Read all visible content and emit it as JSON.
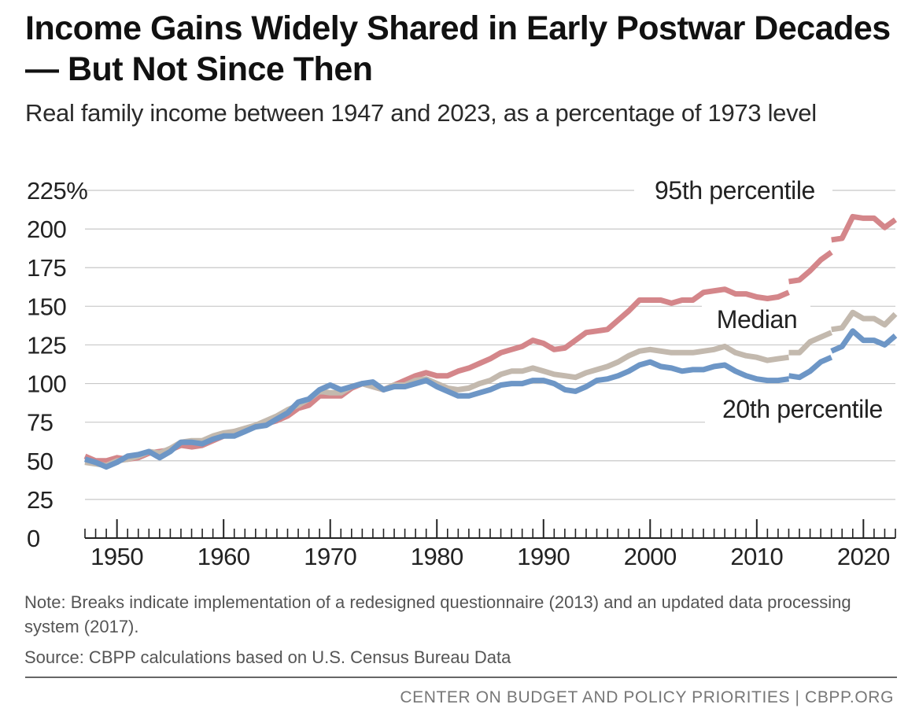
{
  "chart_data": {
    "type": "line",
    "title": "Income Gains Widely Shared in Early Postwar Decades — But Not Since Then",
    "subtitle": "Real family income between 1947 and 2023, as a percentage of 1973 level",
    "xlabel": "",
    "ylabel": "",
    "xlim": [
      1947,
      2023
    ],
    "ylim": [
      0,
      225
    ],
    "yticks": [
      0,
      25,
      50,
      75,
      100,
      125,
      150,
      175,
      200,
      225
    ],
    "ytick_labels": [
      "0",
      "25",
      "50",
      "75",
      "100",
      "125",
      "150",
      "175",
      "200",
      "225%"
    ],
    "xticks": [
      1950,
      1960,
      1970,
      1980,
      1990,
      2000,
      2010,
      2020
    ],
    "xtick_labels": [
      "1950",
      "1960",
      "1970",
      "1980",
      "1990",
      "2000",
      "2010",
      "2020"
    ],
    "grid": true,
    "series": [
      {
        "name": "95th percentile",
        "label": "95th percentile",
        "color": "#d4868a",
        "segments": [
          [
            [
              1947,
              53
            ],
            [
              1948,
              50
            ],
            [
              1949,
              50
            ],
            [
              1950,
              52
            ],
            [
              1951,
              51
            ],
            [
              1952,
              52
            ],
            [
              1953,
              55
            ],
            [
              1954,
              56
            ],
            [
              1955,
              57
            ],
            [
              1956,
              60
            ],
            [
              1957,
              59
            ],
            [
              1958,
              60
            ],
            [
              1959,
              63
            ],
            [
              1960,
              66
            ],
            [
              1961,
              69
            ],
            [
              1962,
              70
            ],
            [
              1963,
              72
            ],
            [
              1964,
              74
            ],
            [
              1965,
              76
            ],
            [
              1966,
              79
            ],
            [
              1967,
              84
            ],
            [
              1968,
              86
            ],
            [
              1969,
              92
            ],
            [
              1970,
              92
            ],
            [
              1971,
              92
            ],
            [
              1972,
              97
            ],
            [
              1973,
              100
            ],
            [
              1974,
              98
            ],
            [
              1975,
              96
            ],
            [
              1976,
              99
            ],
            [
              1977,
              102
            ],
            [
              1978,
              105
            ],
            [
              1979,
              107
            ],
            [
              1980,
              105
            ],
            [
              1981,
              105
            ],
            [
              1982,
              108
            ],
            [
              1983,
              110
            ],
            [
              1984,
              113
            ],
            [
              1985,
              116
            ],
            [
              1986,
              120
            ],
            [
              1987,
              122
            ],
            [
              1988,
              124
            ],
            [
              1989,
              128
            ],
            [
              1990,
              126
            ],
            [
              1991,
              122
            ],
            [
              1992,
              123
            ],
            [
              1993,
              128
            ],
            [
              1994,
              133
            ],
            [
              1995,
              134
            ],
            [
              1996,
              135
            ],
            [
              1997,
              141
            ],
            [
              1998,
              147
            ],
            [
              1999,
              154
            ],
            [
              2000,
              154
            ],
            [
              2001,
              154
            ],
            [
              2002,
              152
            ],
            [
              2003,
              154
            ],
            [
              2004,
              154
            ],
            [
              2005,
              159
            ],
            [
              2006,
              160
            ],
            [
              2007,
              161
            ],
            [
              2008,
              158
            ],
            [
              2009,
              158
            ],
            [
              2010,
              156
            ],
            [
              2011,
              155
            ],
            [
              2012,
              156
            ],
            [
              2013,
              159
            ]
          ],
          [
            [
              2013,
              166
            ],
            [
              2014,
              167
            ],
            [
              2015,
              173
            ],
            [
              2016,
              180
            ],
            [
              2017,
              185
            ]
          ],
          [
            [
              2017,
              193
            ],
            [
              2018,
              194
            ],
            [
              2019,
              208
            ],
            [
              2020,
              207
            ],
            [
              2021,
              207
            ],
            [
              2022,
              201
            ],
            [
              2023,
              206
            ]
          ]
        ]
      },
      {
        "name": "Median",
        "label": "Median",
        "color": "#c3b9ae",
        "segments": [
          [
            [
              1947,
              49
            ],
            [
              1948,
              48
            ],
            [
              1949,
              47
            ],
            [
              1950,
              50
            ],
            [
              1951,
              51
            ],
            [
              1952,
              53
            ],
            [
              1953,
              56
            ],
            [
              1954,
              55
            ],
            [
              1955,
              58
            ],
            [
              1956,
              62
            ],
            [
              1957,
              63
            ],
            [
              1958,
              63
            ],
            [
              1959,
              66
            ],
            [
              1960,
              68
            ],
            [
              1961,
              69
            ],
            [
              1962,
              71
            ],
            [
              1963,
              73
            ],
            [
              1964,
              76
            ],
            [
              1965,
              79
            ],
            [
              1966,
              83
            ],
            [
              1967,
              86
            ],
            [
              1968,
              90
            ],
            [
              1969,
              95
            ],
            [
              1970,
              94
            ],
            [
              1971,
              94
            ],
            [
              1972,
              98
            ],
            [
              1973,
              100
            ],
            [
              1974,
              98
            ],
            [
              1975,
              96
            ],
            [
              1976,
              99
            ],
            [
              1977,
              99
            ],
            [
              1978,
              102
            ],
            [
              1979,
              103
            ],
            [
              1980,
              100
            ],
            [
              1981,
              97
            ],
            [
              1982,
              96
            ],
            [
              1983,
              97
            ],
            [
              1984,
              100
            ],
            [
              1985,
              102
            ],
            [
              1986,
              106
            ],
            [
              1987,
              108
            ],
            [
              1988,
              108
            ],
            [
              1989,
              110
            ],
            [
              1990,
              108
            ],
            [
              1991,
              106
            ],
            [
              1992,
              105
            ],
            [
              1993,
              104
            ],
            [
              1994,
              107
            ],
            [
              1995,
              109
            ],
            [
              1996,
              111
            ],
            [
              1997,
              114
            ],
            [
              1998,
              118
            ],
            [
              1999,
              121
            ],
            [
              2000,
              122
            ],
            [
              2001,
              121
            ],
            [
              2002,
              120
            ],
            [
              2003,
              120
            ],
            [
              2004,
              120
            ],
            [
              2005,
              121
            ],
            [
              2006,
              122
            ],
            [
              2007,
              124
            ],
            [
              2008,
              120
            ],
            [
              2009,
              118
            ],
            [
              2010,
              117
            ],
            [
              2011,
              115
            ],
            [
              2012,
              116
            ],
            [
              2013,
              117
            ]
          ],
          [
            [
              2013,
              120
            ],
            [
              2014,
              120
            ],
            [
              2015,
              127
            ],
            [
              2016,
              130
            ],
            [
              2017,
              133
            ]
          ],
          [
            [
              2017,
              135
            ],
            [
              2018,
              136
            ],
            [
              2019,
              146
            ],
            [
              2020,
              142
            ],
            [
              2021,
              142
            ],
            [
              2022,
              138
            ],
            [
              2023,
              145
            ]
          ]
        ]
      },
      {
        "name": "20th percentile",
        "label": "20th percentile",
        "color": "#6d96c6",
        "segments": [
          [
            [
              1947,
              51
            ],
            [
              1948,
              49
            ],
            [
              1949,
              46
            ],
            [
              1950,
              49
            ],
            [
              1951,
              53
            ],
            [
              1952,
              54
            ],
            [
              1953,
              56
            ],
            [
              1954,
              52
            ],
            [
              1955,
              56
            ],
            [
              1956,
              62
            ],
            [
              1957,
              62
            ],
            [
              1958,
              61
            ],
            [
              1959,
              64
            ],
            [
              1960,
              66
            ],
            [
              1961,
              66
            ],
            [
              1962,
              69
            ],
            [
              1963,
              72
            ],
            [
              1964,
              73
            ],
            [
              1965,
              77
            ],
            [
              1966,
              81
            ],
            [
              1967,
              88
            ],
            [
              1968,
              90
            ],
            [
              1969,
              96
            ],
            [
              1970,
              99
            ],
            [
              1971,
              96
            ],
            [
              1972,
              98
            ],
            [
              1973,
              100
            ],
            [
              1974,
              101
            ],
            [
              1975,
              96
            ],
            [
              1976,
              98
            ],
            [
              1977,
              98
            ],
            [
              1978,
              100
            ],
            [
              1979,
              102
            ],
            [
              1980,
              98
            ],
            [
              1981,
              95
            ],
            [
              1982,
              92
            ],
            [
              1983,
              92
            ],
            [
              1984,
              94
            ],
            [
              1985,
              96
            ],
            [
              1986,
              99
            ],
            [
              1987,
              100
            ],
            [
              1988,
              100
            ],
            [
              1989,
              102
            ],
            [
              1990,
              102
            ],
            [
              1991,
              100
            ],
            [
              1992,
              96
            ],
            [
              1993,
              95
            ],
            [
              1994,
              98
            ],
            [
              1995,
              102
            ],
            [
              1996,
              103
            ],
            [
              1997,
              105
            ],
            [
              1998,
              108
            ],
            [
              1999,
              112
            ],
            [
              2000,
              114
            ],
            [
              2001,
              111
            ],
            [
              2002,
              110
            ],
            [
              2003,
              108
            ],
            [
              2004,
              109
            ],
            [
              2005,
              109
            ],
            [
              2006,
              111
            ],
            [
              2007,
              112
            ],
            [
              2008,
              108
            ],
            [
              2009,
              105
            ],
            [
              2010,
              103
            ],
            [
              2011,
              102
            ],
            [
              2012,
              102
            ],
            [
              2013,
              103
            ]
          ],
          [
            [
              2013,
              105
            ],
            [
              2014,
              104
            ],
            [
              2015,
              108
            ],
            [
              2016,
              114
            ],
            [
              2017,
              117
            ]
          ],
          [
            [
              2017,
              121
            ],
            [
              2018,
              124
            ],
            [
              2019,
              134
            ],
            [
              2020,
              128
            ],
            [
              2021,
              128
            ],
            [
              2022,
              125
            ],
            [
              2023,
              131
            ]
          ]
        ]
      }
    ]
  },
  "note": "Note: Breaks indicate implementation of a redesigned questionnaire (2013) and an updated data processing system (2017).",
  "source": "Source: CBPP calculations based on U.S. Census Bureau Data",
  "footer": "CENTER ON BUDGET AND POLICY PRIORITIES | CBPP.ORG"
}
